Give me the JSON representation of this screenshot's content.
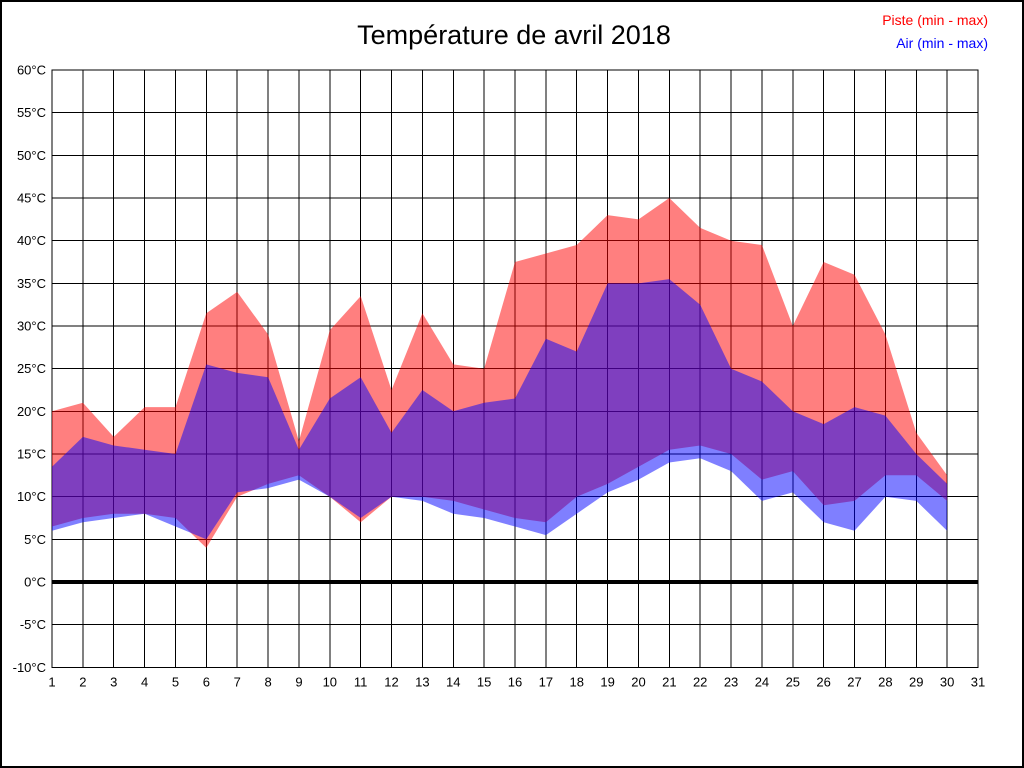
{
  "title": "Température de avril 2018",
  "legend": {
    "piste": {
      "label": "Piste (min - max)",
      "color": "#ff0000"
    },
    "air": {
      "label": "Air (min - max)",
      "color": "#0000ff"
    }
  },
  "colors": {
    "piste_fill": "rgba(255,0,0,0.5)",
    "air_fill": "rgba(0,0,255,0.5)",
    "grid": "#000000",
    "axis_text": "#000000",
    "zero_line": "#000000"
  },
  "chart_data": {
    "type": "area",
    "title": "Température de avril 2018",
    "x": [
      1,
      2,
      3,
      4,
      5,
      6,
      7,
      8,
      9,
      10,
      11,
      12,
      13,
      14,
      15,
      16,
      17,
      18,
      19,
      20,
      21,
      22,
      23,
      24,
      25,
      26,
      27,
      28,
      29,
      30
    ],
    "series": [
      {
        "name": "Piste (min - max)",
        "min": [
          6.5,
          7.5,
          8,
          8,
          7.5,
          4,
          10,
          11.5,
          12.5,
          10,
          7,
          10,
          10,
          9.5,
          8.5,
          7.5,
          7,
          10,
          11.5,
          13.5,
          15.5,
          16,
          15,
          12,
          13,
          9,
          9.5,
          12.5,
          12.5,
          9.5
        ],
        "max": [
          20,
          21,
          17,
          20.5,
          20.5,
          31.5,
          34,
          29,
          16.5,
          29.5,
          33.5,
          22.5,
          31.5,
          25.5,
          25,
          37.5,
          38.5,
          39.5,
          43,
          42.5,
          45,
          41.5,
          40,
          39.5,
          30,
          37.5,
          36,
          29,
          17.5,
          12.5
        ]
      },
      {
        "name": "Air (min - max)",
        "min": [
          6,
          7,
          7.5,
          8,
          6.5,
          5,
          10.5,
          11,
          12,
          10,
          7.5,
          10,
          9.5,
          8,
          7.5,
          6.5,
          5.5,
          8,
          10.5,
          12,
          14,
          14.5,
          13,
          9.5,
          10.5,
          7,
          6,
          10,
          9.5,
          6
        ],
        "max": [
          13.5,
          17,
          16,
          15.5,
          15,
          25.5,
          24.5,
          24,
          15.5,
          21.5,
          24,
          17.5,
          22.5,
          20,
          21,
          21.5,
          28.5,
          27,
          35,
          35,
          35.5,
          32.5,
          25,
          23.5,
          20,
          18.5,
          20.5,
          19.5,
          15,
          11.5
        ]
      }
    ],
    "ylim": [
      -10,
      60
    ],
    "ytick_step": 5,
    "y_ticks": [
      {
        "v": 60,
        "label": "60°C"
      },
      {
        "v": 55,
        "label": "55°C"
      },
      {
        "v": 50,
        "label": "50°C"
      },
      {
        "v": 45,
        "label": "45°C"
      },
      {
        "v": 40,
        "label": "40°C"
      },
      {
        "v": 35,
        "label": "35°C"
      },
      {
        "v": 30,
        "label": "30°C"
      },
      {
        "v": 25,
        "label": "25°C"
      },
      {
        "v": 20,
        "label": "20°C"
      },
      {
        "v": 15,
        "label": "15°C"
      },
      {
        "v": 10,
        "label": "10°C"
      },
      {
        "v": 5,
        "label": "5°C"
      },
      {
        "v": 0,
        "label": "0°C"
      },
      {
        "v": -5,
        "label": "-5°C"
      },
      {
        "v": -10,
        "label": "-10°C"
      }
    ],
    "x_ticks": [
      "1",
      "2",
      "3",
      "4",
      "5",
      "6",
      "7",
      "8",
      "9",
      "10",
      "11",
      "12",
      "13",
      "14",
      "15",
      "16",
      "17",
      "18",
      "19",
      "20",
      "21",
      "22",
      "23",
      "24",
      "25",
      "26",
      "27",
      "28",
      "29",
      "30",
      "31"
    ],
    "grid": true,
    "zero_line": true,
    "legend_position": "top-right"
  }
}
